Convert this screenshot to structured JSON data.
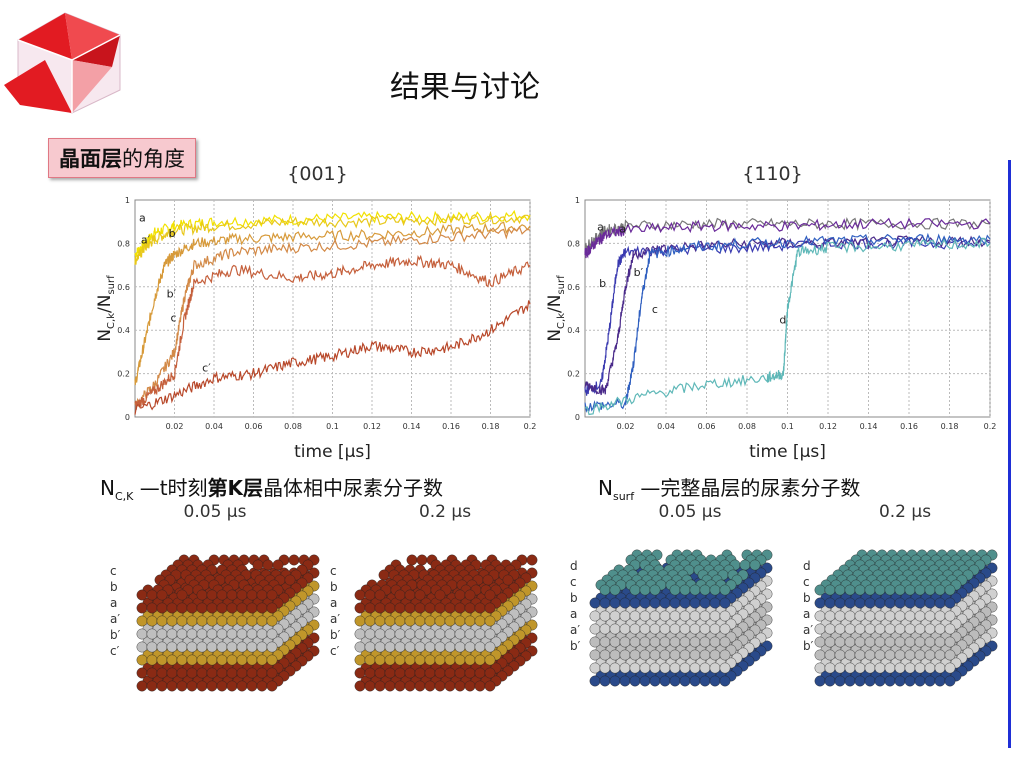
{
  "slide": {
    "title": "结果与讨论",
    "tag_bold": "晶面层",
    "tag_rest": "的角度"
  },
  "captions": {
    "left_main": "N",
    "left_sub": "C,K",
    "left_rest": " —t时刻",
    "left_bold": "第K层",
    "left_tail": "晶体相中尿素分子数",
    "right_main": "N",
    "right_sub": "surf",
    "right_rest": " —完整晶层的尿素分子数"
  },
  "snapshots": {
    "times": [
      "0.05 µs",
      "0.2 µs",
      "0.05 µs",
      "0.2 µs"
    ],
    "labels_001": [
      "c",
      "b",
      "a",
      "a′",
      "b′",
      "c′"
    ],
    "labels_110": [
      "d",
      "c",
      "b",
      "a",
      "a′",
      "b′"
    ]
  },
  "chart_data": [
    {
      "type": "line",
      "title": "{001}",
      "xlabel": "time [µs]",
      "ylabel": "N_C,k/N_surf",
      "xlim": [
        0,
        0.2
      ],
      "ylim": [
        0,
        1
      ],
      "xticks": [
        "0.02",
        "0.04",
        "0.06",
        "0.08",
        "0.1",
        "0.12",
        "0.14",
        "0.16",
        "0.18",
        "0.2"
      ],
      "yticks": [
        "0",
        "0.2",
        "0.4",
        "0.6",
        "0.8",
        "1"
      ],
      "grid": true,
      "series": [
        {
          "name": "a",
          "color": "#f2e100",
          "x": [
            0,
            0.005,
            0.01,
            0.02,
            0.04,
            0.08,
            0.12,
            0.16,
            0.2
          ],
          "y": [
            0.75,
            0.8,
            0.85,
            0.88,
            0.9,
            0.91,
            0.92,
            0.92,
            0.93
          ]
        },
        {
          "name": "a′",
          "color": "#e8c81a",
          "x": [
            0,
            0.005,
            0.01,
            0.02,
            0.04,
            0.08,
            0.12,
            0.16,
            0.2
          ],
          "y": [
            0.72,
            0.78,
            0.82,
            0.86,
            0.88,
            0.9,
            0.9,
            0.91,
            0.92
          ]
        },
        {
          "name": "b",
          "color": "#d79a3a",
          "x": [
            0,
            0.005,
            0.01,
            0.015,
            0.02,
            0.03,
            0.05,
            0.08,
            0.12,
            0.16,
            0.2
          ],
          "y": [
            0.15,
            0.35,
            0.55,
            0.7,
            0.75,
            0.8,
            0.82,
            0.83,
            0.84,
            0.86,
            0.88
          ]
        },
        {
          "name": "b′",
          "color": "#d38a48",
          "x": [
            0,
            0.01,
            0.02,
            0.025,
            0.03,
            0.05,
            0.08,
            0.12,
            0.16,
            0.2
          ],
          "y": [
            0.05,
            0.15,
            0.3,
            0.55,
            0.7,
            0.76,
            0.78,
            0.8,
            0.83,
            0.86
          ]
        },
        {
          "name": "c",
          "color": "#c5603c",
          "x": [
            0,
            0.01,
            0.02,
            0.025,
            0.03,
            0.05,
            0.08,
            0.1,
            0.12,
            0.14,
            0.16,
            0.18,
            0.2
          ],
          "y": [
            0.05,
            0.12,
            0.2,
            0.45,
            0.62,
            0.68,
            0.64,
            0.66,
            0.7,
            0.72,
            0.7,
            0.62,
            0.7
          ]
        },
        {
          "name": "c′",
          "color": "#b8482a",
          "x": [
            0,
            0.02,
            0.04,
            0.06,
            0.08,
            0.1,
            0.12,
            0.14,
            0.16,
            0.18,
            0.2
          ],
          "y": [
            0.03,
            0.1,
            0.18,
            0.2,
            0.25,
            0.28,
            0.33,
            0.3,
            0.32,
            0.4,
            0.52
          ]
        }
      ]
    },
    {
      "type": "line",
      "title": "{110}",
      "xlabel": "time [µs]",
      "ylabel": "N_C,k/N_surf",
      "xlim": [
        0,
        0.2
      ],
      "ylim": [
        0,
        1
      ],
      "xticks": [
        "0.02",
        "0.04",
        "0.06",
        "0.08",
        "0.1",
        "0.12",
        "0.14",
        "0.16",
        "0.18",
        "0.2"
      ],
      "yticks": [
        "0",
        "0.2",
        "0.4",
        "0.6",
        "0.8",
        "1"
      ],
      "grid": true,
      "series": [
        {
          "name": "a",
          "color": "#777777",
          "x": [
            0,
            0.005,
            0.01,
            0.02,
            0.06,
            0.1,
            0.14,
            0.2
          ],
          "y": [
            0.78,
            0.82,
            0.86,
            0.88,
            0.89,
            0.89,
            0.89,
            0.89
          ]
        },
        {
          "name": "a′",
          "color": "#6a2a9a",
          "x": [
            0,
            0.005,
            0.01,
            0.02,
            0.06,
            0.1,
            0.14,
            0.2
          ],
          "y": [
            0.75,
            0.8,
            0.84,
            0.86,
            0.88,
            0.88,
            0.89,
            0.89
          ]
        },
        {
          "name": "b",
          "color": "#3a3ab0",
          "x": [
            0,
            0.008,
            0.012,
            0.016,
            0.02,
            0.04,
            0.08,
            0.12,
            0.16,
            0.2
          ],
          "y": [
            0.12,
            0.15,
            0.4,
            0.7,
            0.76,
            0.77,
            0.78,
            0.8,
            0.8,
            0.8
          ]
        },
        {
          "name": "b′",
          "color": "#4a2a8a",
          "x": [
            0,
            0.01,
            0.016,
            0.02,
            0.024,
            0.04,
            0.08,
            0.12,
            0.16,
            0.2
          ],
          "y": [
            0.15,
            0.12,
            0.35,
            0.6,
            0.75,
            0.78,
            0.8,
            0.8,
            0.81,
            0.81
          ]
        },
        {
          "name": "c",
          "color": "#2f5fc0",
          "x": [
            0,
            0.02,
            0.024,
            0.028,
            0.032,
            0.05,
            0.08,
            0.12,
            0.16,
            0.2
          ],
          "y": [
            0.05,
            0.06,
            0.25,
            0.55,
            0.75,
            0.78,
            0.8,
            0.81,
            0.82,
            0.82
          ]
        },
        {
          "name": "d",
          "color": "#5fb8b8",
          "x": [
            0,
            0.03,
            0.06,
            0.09,
            0.098,
            0.1,
            0.105,
            0.12,
            0.16,
            0.2
          ],
          "y": [
            0.03,
            0.1,
            0.15,
            0.18,
            0.2,
            0.5,
            0.76,
            0.78,
            0.79,
            0.8
          ]
        }
      ]
    }
  ]
}
